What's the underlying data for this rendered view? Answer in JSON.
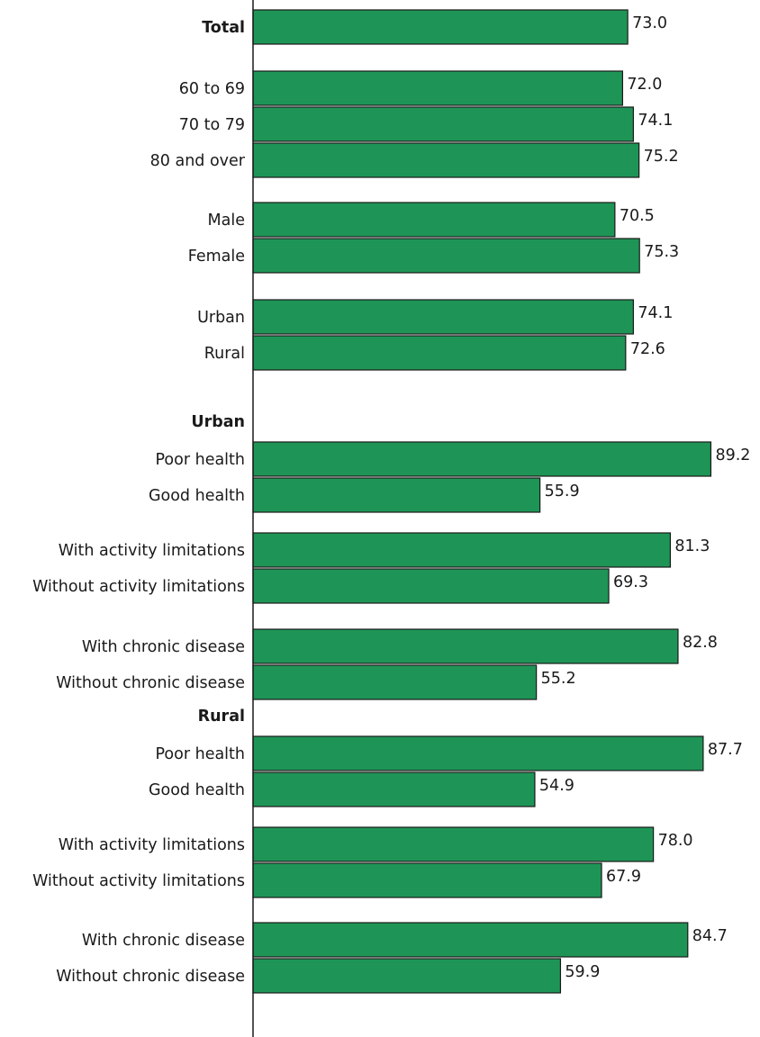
{
  "chart_data": {
    "type": "bar",
    "orientation": "horizontal",
    "title": "",
    "xlabel": "",
    "ylabel": "",
    "xlim": [
      0,
      90
    ],
    "grid": false,
    "bar_color": "#1e9556",
    "categories": [
      "Total",
      "60 to 69",
      "70 to 79",
      "80 and over",
      "Male",
      "Female",
      "Urban",
      "Rural",
      "Poor health",
      "Good health",
      "With activity limitations",
      "Without activity limitations",
      "With chronic disease",
      "Without chronic disease",
      "Poor health",
      "Good health",
      "With activity limitations",
      "Without activity limitations",
      "With chronic disease",
      "Without chronic disease"
    ],
    "values": [
      73.0,
      72.0,
      74.1,
      75.2,
      70.5,
      75.3,
      74.1,
      72.6,
      89.2,
      55.9,
      81.3,
      69.3,
      82.8,
      55.2,
      87.7,
      54.9,
      78.0,
      67.9,
      84.7,
      59.9
    ],
    "value_labels": [
      "73.0",
      "72.0",
      "74.1",
      "75.2",
      "70.5",
      "75.3",
      "74.1",
      "72.6",
      "89.2",
      "55.9",
      "81.3",
      "69.3",
      "82.8",
      "55.2",
      "87.7",
      "54.9",
      "78.0",
      "67.9",
      "84.7",
      "59.9"
    ],
    "group_headings": [
      "Urban",
      "Rural"
    ]
  }
}
